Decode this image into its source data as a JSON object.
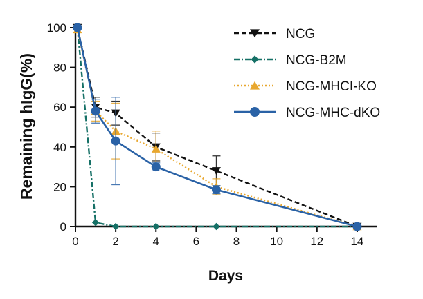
{
  "chart_data": {
    "type": "line",
    "title": "",
    "xlabel": "Days",
    "ylabel": "Remaining hIgG(%)",
    "xlim": [
      0,
      15
    ],
    "ylim": [
      0,
      100
    ],
    "xticks": [
      0,
      2,
      4,
      6,
      8,
      10,
      12,
      14
    ],
    "yticks": [
      0,
      20,
      40,
      60,
      80,
      100
    ],
    "legend_position": "top-right",
    "series": [
      {
        "name": "NCG",
        "color": "#111111",
        "marker": "triangle-down",
        "line_style": "dashed",
        "x": [
          0.1,
          1,
          2,
          4,
          7,
          14
        ],
        "y": [
          100,
          60,
          57,
          40,
          28,
          0
        ],
        "err": [
          0,
          5,
          6,
          7,
          7.5,
          0
        ]
      },
      {
        "name": "NCG-B2M",
        "color": "#157066",
        "marker": "diamond",
        "line_style": "dash-dot",
        "x": [
          0.1,
          1,
          2,
          4,
          7,
          14
        ],
        "y": [
          100,
          2,
          0,
          0,
          0,
          0
        ],
        "err": [
          0,
          0,
          0,
          0,
          0,
          0
        ]
      },
      {
        "name": "NCG-MHCI-KO",
        "color": "#e8a72e",
        "marker": "triangle-up",
        "line_style": "dotted",
        "x": [
          0.1,
          1,
          2,
          4,
          7,
          14
        ],
        "y": [
          99,
          58,
          48,
          39,
          20,
          0
        ],
        "err": [
          0,
          5,
          14,
          9,
          4,
          0
        ]
      },
      {
        "name": "NCG-MHC-dKO",
        "color": "#2a62a6",
        "marker": "circle",
        "line_style": "solid",
        "x": [
          0.1,
          1,
          2,
          4,
          7,
          14
        ],
        "y": [
          100,
          58,
          43,
          30,
          18.5,
          0
        ],
        "err": [
          0,
          6,
          22,
          2,
          2,
          0
        ]
      }
    ]
  }
}
